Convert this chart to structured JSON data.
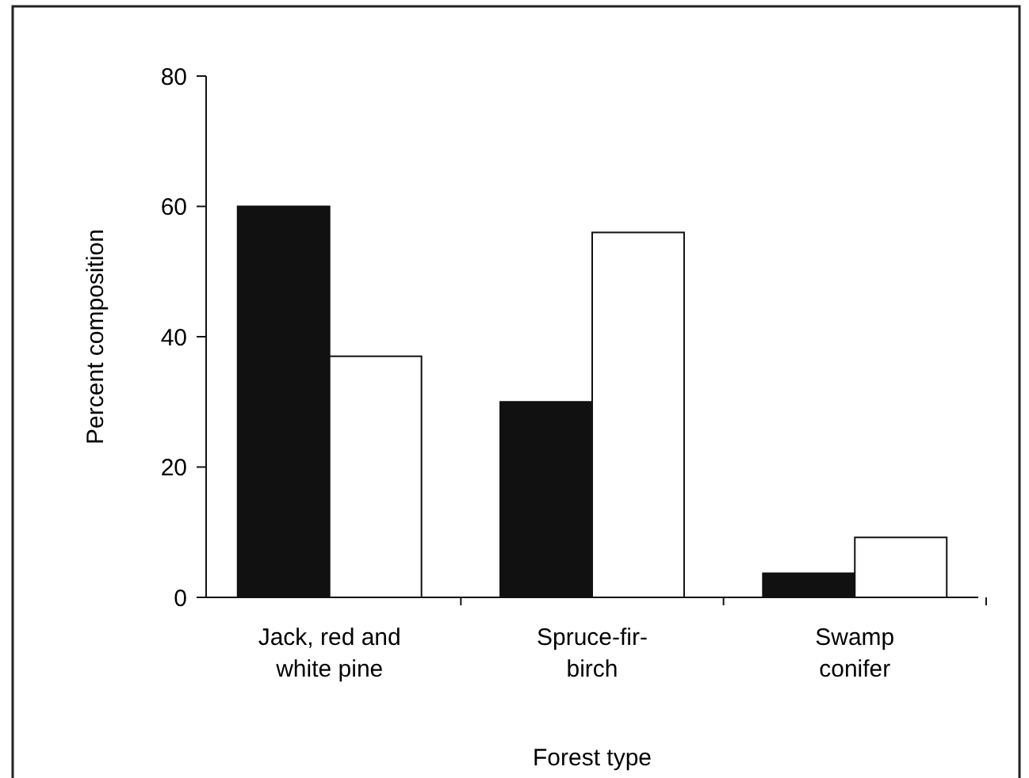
{
  "chart_data": {
    "type": "bar",
    "xlabel": "Forest type",
    "ylabel": "Percent composition",
    "categories": [
      "Jack, red and\nwhite pine",
      "Spruce-fir-\nbirch",
      "Swamp\nconifer"
    ],
    "series": [
      {
        "color": "#111111",
        "values": [
          60,
          30,
          3.7
        ]
      },
      {
        "color": "#ffffff",
        "values": [
          37,
          56,
          9.2
        ]
      }
    ],
    "ylim": [
      0,
      80
    ],
    "yticks": [
      0,
      20,
      40,
      60,
      80
    ]
  }
}
